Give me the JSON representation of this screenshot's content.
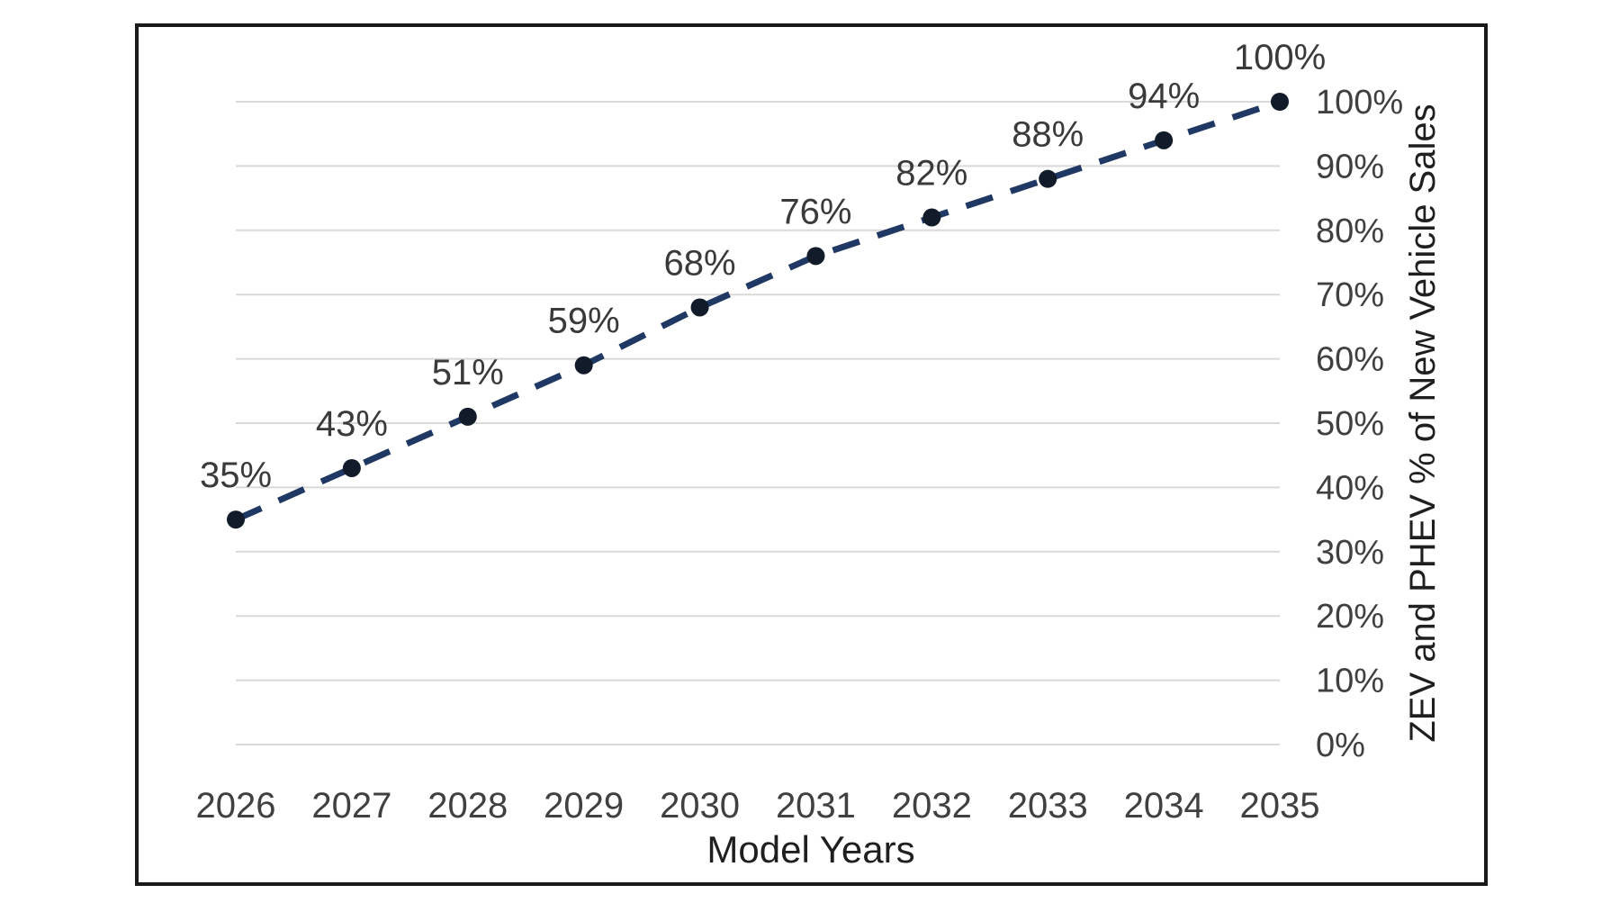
{
  "figure": {
    "background_color": "#ffffff",
    "frame_border_color": "#1a1a1a"
  },
  "chart_data": {
    "type": "line",
    "title": "",
    "categories": [
      "2026",
      "2027",
      "2028",
      "2029",
      "2030",
      "2031",
      "2032",
      "2033",
      "2034",
      "2035"
    ],
    "series": [
      {
        "name": "ZEV and PHEV % of New Vehicle Sales",
        "values": [
          35,
          43,
          51,
          59,
          68,
          76,
          82,
          88,
          94,
          100
        ],
        "data_labels": [
          "35%",
          "43%",
          "51%",
          "59%",
          "68%",
          "76%",
          "82%",
          "88%",
          "94%",
          "100%"
        ],
        "line_color": "#1f3864",
        "line_style": "dashed",
        "marker": "circle",
        "marker_color": "#121b29"
      }
    ],
    "xlabel": "Model Years",
    "ylabel": "ZEV and PHEV % of New Vehicle Sales",
    "ylim": [
      0,
      100
    ],
    "y_tick_step": 10,
    "y_tick_labels": [
      "0%",
      "10%",
      "20%",
      "30%",
      "40%",
      "50%",
      "60%",
      "70%",
      "80%",
      "90%",
      "100%"
    ],
    "y_axis_side": "right",
    "x_axis_position": "bottom",
    "grid": "horizontal",
    "gridline_color": "#d9d9d9",
    "legend_position": "none",
    "text_colors": {
      "data_label": "#3a3a3a",
      "tick_label": "#404040",
      "axis_title": "#1f1f1f"
    }
  }
}
